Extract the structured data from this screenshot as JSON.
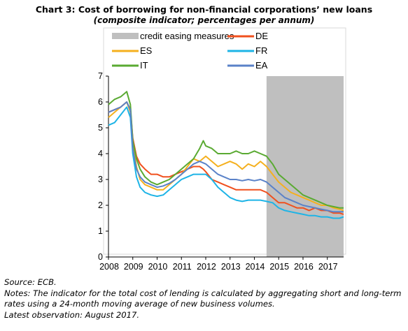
{
  "header": {
    "title": "Chart 3: Cost of borrowing for non-financial corporations’ new loans",
    "subtitle": "(composite indicator; percentages per annum)"
  },
  "notes": {
    "source": "Source: ECB.",
    "notes_line1": "Notes: The indicator for the total cost of lending is calculated by aggregating short and long-term",
    "notes_line2": "rates using a 24-month moving average of new business volumes.",
    "latest": "Latest observation: August 2017."
  },
  "chart_data": {
    "type": "line",
    "title": "",
    "xlabel": "",
    "ylabel": "",
    "xlim": [
      2008.0,
      2017.67
    ],
    "ylim": [
      0,
      7
    ],
    "yticks": [
      0,
      1,
      2,
      3,
      4,
      5,
      6,
      7
    ],
    "xticks": [
      2008,
      2009,
      2010,
      2011,
      2012,
      2013,
      2014,
      2015,
      2016,
      2017
    ],
    "grid": false,
    "legend_position": "top",
    "shaded_region": {
      "label": "credit easing measures",
      "start": 2014.5,
      "end": 2017.67,
      "color": "#bfbfbf"
    },
    "series": [
      {
        "name": "DE",
        "color": "#f0501e",
        "x": [
          2008.0,
          2008.25,
          2008.5,
          2008.75,
          2008.9,
          2009.0,
          2009.15,
          2009.3,
          2009.5,
          2009.75,
          2010.0,
          2010.25,
          2010.5,
          2010.75,
          2011.0,
          2011.25,
          2011.5,
          2011.75,
          2011.9,
          2012.0,
          2012.25,
          2012.5,
          2012.75,
          2013.0,
          2013.25,
          2013.5,
          2013.75,
          2014.0,
          2014.25,
          2014.5,
          2014.75,
          2015.0,
          2015.25,
          2015.5,
          2015.75,
          2016.0,
          2016.25,
          2016.5,
          2016.75,
          2017.0,
          2017.25,
          2017.5,
          2017.67
        ],
        "y": [
          5.6,
          5.7,
          5.8,
          6.0,
          5.7,
          4.6,
          3.9,
          3.6,
          3.4,
          3.2,
          3.2,
          3.1,
          3.1,
          3.2,
          3.3,
          3.4,
          3.5,
          3.5,
          3.4,
          3.3,
          3.0,
          2.9,
          2.8,
          2.7,
          2.6,
          2.6,
          2.6,
          2.6,
          2.6,
          2.5,
          2.3,
          2.1,
          2.1,
          2.0,
          1.9,
          1.9,
          1.8,
          1.9,
          1.8,
          1.8,
          1.7,
          1.7,
          1.65
        ]
      },
      {
        "name": "ES",
        "color": "#f5b01e",
        "x": [
          2008.0,
          2008.25,
          2008.5,
          2008.75,
          2008.9,
          2009.0,
          2009.15,
          2009.3,
          2009.5,
          2009.75,
          2010.0,
          2010.25,
          2010.5,
          2010.75,
          2011.0,
          2011.25,
          2011.5,
          2011.75,
          2012.0,
          2012.25,
          2012.5,
          2012.75,
          2013.0,
          2013.25,
          2013.5,
          2013.75,
          2014.0,
          2014.25,
          2014.5,
          2014.75,
          2015.0,
          2015.25,
          2015.5,
          2015.75,
          2016.0,
          2016.25,
          2016.5,
          2016.75,
          2017.0,
          2017.25,
          2017.5,
          2017.67
        ],
        "y": [
          5.4,
          5.6,
          5.8,
          6.0,
          5.6,
          4.4,
          3.5,
          3.0,
          2.8,
          2.7,
          2.6,
          2.6,
          2.8,
          3.0,
          3.2,
          3.5,
          3.8,
          3.7,
          3.9,
          3.7,
          3.5,
          3.6,
          3.7,
          3.6,
          3.4,
          3.6,
          3.5,
          3.7,
          3.5,
          3.2,
          2.9,
          2.7,
          2.5,
          2.4,
          2.3,
          2.2,
          2.1,
          2.0,
          2.0,
          1.9,
          1.85,
          1.8
        ]
      },
      {
        "name": "IT",
        "color": "#5aaa32",
        "x": [
          2008.0,
          2008.25,
          2008.5,
          2008.75,
          2008.9,
          2009.0,
          2009.15,
          2009.3,
          2009.5,
          2009.75,
          2010.0,
          2010.25,
          2010.5,
          2010.75,
          2011.0,
          2011.25,
          2011.5,
          2011.75,
          2011.9,
          2012.0,
          2012.25,
          2012.5,
          2012.75,
          2013.0,
          2013.25,
          2013.5,
          2013.75,
          2014.0,
          2014.25,
          2014.5,
          2014.75,
          2015.0,
          2015.25,
          2015.5,
          2015.75,
          2016.0,
          2016.25,
          2016.5,
          2016.75,
          2017.0,
          2017.25,
          2017.5,
          2017.67
        ],
        "y": [
          5.9,
          6.1,
          6.2,
          6.4,
          5.9,
          4.5,
          3.8,
          3.4,
          3.1,
          2.9,
          2.8,
          2.9,
          3.0,
          3.2,
          3.4,
          3.6,
          3.8,
          4.2,
          4.5,
          4.3,
          4.2,
          4.0,
          4.0,
          4.0,
          4.1,
          4.0,
          4.0,
          4.1,
          4.0,
          3.9,
          3.6,
          3.2,
          3.0,
          2.8,
          2.6,
          2.4,
          2.3,
          2.2,
          2.1,
          2.0,
          1.95,
          1.9,
          1.9
        ]
      },
      {
        "name": "FR",
        "color": "#1eb4e6",
        "x": [
          2008.0,
          2008.25,
          2008.5,
          2008.75,
          2008.9,
          2009.0,
          2009.15,
          2009.3,
          2009.5,
          2009.75,
          2010.0,
          2010.25,
          2010.5,
          2010.75,
          2011.0,
          2011.25,
          2011.5,
          2011.75,
          2012.0,
          2012.25,
          2012.5,
          2012.75,
          2013.0,
          2013.25,
          2013.5,
          2013.75,
          2014.0,
          2014.25,
          2014.5,
          2014.75,
          2015.0,
          2015.25,
          2015.5,
          2015.75,
          2016.0,
          2016.25,
          2016.5,
          2016.75,
          2017.0,
          2017.25,
          2017.5,
          2017.67
        ],
        "y": [
          5.1,
          5.2,
          5.5,
          5.8,
          5.4,
          4.0,
          3.1,
          2.7,
          2.5,
          2.4,
          2.35,
          2.4,
          2.6,
          2.8,
          3.0,
          3.1,
          3.2,
          3.2,
          3.2,
          3.0,
          2.7,
          2.5,
          2.3,
          2.2,
          2.15,
          2.2,
          2.2,
          2.2,
          2.15,
          2.1,
          1.9,
          1.8,
          1.75,
          1.7,
          1.65,
          1.6,
          1.6,
          1.55,
          1.55,
          1.5,
          1.5,
          1.55
        ]
      },
      {
        "name": "EA",
        "color": "#5a82c8",
        "x": [
          2008.0,
          2008.25,
          2008.5,
          2008.75,
          2008.9,
          2009.0,
          2009.15,
          2009.3,
          2009.5,
          2009.75,
          2010.0,
          2010.25,
          2010.5,
          2010.75,
          2011.0,
          2011.25,
          2011.5,
          2011.75,
          2012.0,
          2012.25,
          2012.5,
          2012.75,
          2013.0,
          2013.25,
          2013.5,
          2013.75,
          2014.0,
          2014.25,
          2014.5,
          2014.75,
          2015.0,
          2015.25,
          2015.5,
          2015.75,
          2016.0,
          2016.25,
          2016.5,
          2016.75,
          2017.0,
          2017.25,
          2017.5,
          2017.67
        ],
        "y": [
          5.6,
          5.7,
          5.8,
          6.0,
          5.7,
          4.2,
          3.4,
          3.1,
          2.9,
          2.8,
          2.7,
          2.75,
          2.85,
          3.0,
          3.2,
          3.4,
          3.6,
          3.7,
          3.6,
          3.4,
          3.2,
          3.1,
          3.0,
          3.0,
          2.95,
          3.0,
          2.95,
          3.0,
          2.9,
          2.7,
          2.5,
          2.3,
          2.2,
          2.1,
          2.0,
          1.95,
          1.9,
          1.85,
          1.8,
          1.75,
          1.75,
          1.75
        ]
      }
    ]
  }
}
